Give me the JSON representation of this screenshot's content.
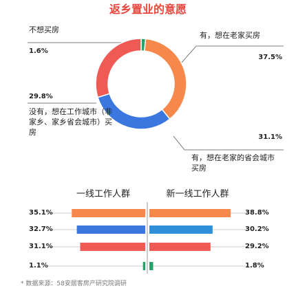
{
  "chart_data": [
    {
      "type": "donut",
      "title": "返乡置业的意愿",
      "categories": [
        "不想买房",
        "有，想在老家买房",
        "有，想在老家的省会城市买房",
        "没有，想在工作城市（非家乡、家乡省会城市）买房"
      ],
      "values": [
        1.6,
        37.5,
        31.1,
        29.8
      ],
      "value_labels": [
        "1.6%",
        "37.5%",
        "31.1%",
        "29.8%"
      ],
      "colors": [
        "#2aa06a",
        "#f5884a",
        "#3a78e0",
        "#f05a55"
      ]
    },
    {
      "type": "butterfly",
      "series": [
        {
          "name": "一线工作人群",
          "values": [
            35.1,
            32.7,
            31.1,
            1.1
          ],
          "value_labels": [
            "35.1%",
            "32.7%",
            "31.1%",
            "1.1%"
          ],
          "colors": [
            "#f5884a",
            "#3a78e0",
            "#f05a55",
            "#2aa06a"
          ]
        },
        {
          "name": "新一线工作人群",
          "values": [
            38.8,
            30.2,
            29.2,
            1.8
          ],
          "value_labels": [
            "38.8%",
            "30.2%",
            "29.2%",
            "1.8%"
          ],
          "colors": [
            "#f5884a",
            "#2f8fd8",
            "#f05a55",
            "#2aa06a"
          ]
        }
      ]
    }
  ],
  "footnote": "* 数据来源：58安居客房产研究院调研"
}
